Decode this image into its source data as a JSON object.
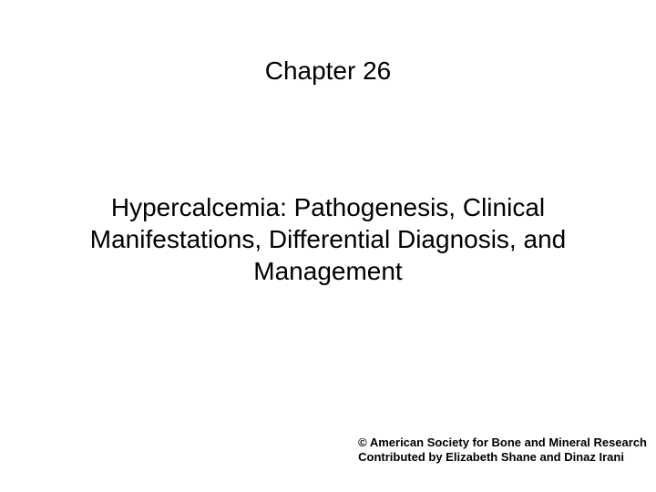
{
  "chapter": {
    "label": "Chapter 26"
  },
  "title": {
    "text": "Hypercalcemia:  Pathogenesis, Clinical Manifestations, Differential Diagnosis, and Management"
  },
  "footer": {
    "copyright": "© American Society for Bone and Mineral Research",
    "contributors": "Contributed by Elizabeth Shane and Dinaz Irani"
  },
  "style": {
    "background_color": "#ffffff",
    "text_color": "#000000",
    "chapter_fontsize": 28,
    "title_fontsize": 28,
    "footer_fontsize": 13,
    "font_family": "Arial"
  }
}
